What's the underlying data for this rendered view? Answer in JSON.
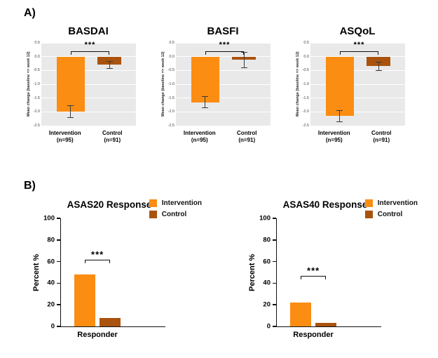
{
  "figure": {
    "panel_a_label": "A)",
    "panel_b_label": "B)"
  },
  "colors": {
    "intervention": "#FB8D12",
    "control": "#A9530E",
    "panel_background": "#E9E9E9"
  },
  "chart_data": [
    {
      "type": "bar",
      "panel": "A",
      "title": "BASDAI",
      "ylabel": "Mean change (baseline => week 12)",
      "categories": [
        "Intervention",
        "Control"
      ],
      "ns": [
        "(n=95)",
        "(n=91)"
      ],
      "values": [
        -2.0,
        -0.3
      ],
      "errors": [
        0.22,
        0.12
      ],
      "ylim": [
        -2.5,
        0.5
      ],
      "yticks": [
        0.5,
        0,
        -0.5,
        -1,
        -1.5,
        -2,
        -2.5
      ],
      "tick_decimals": 1,
      "grid": true,
      "significance": "***",
      "sig_y": 0.2,
      "bar_centers_pct": [
        31,
        72
      ],
      "bar_width_pct": [
        30,
        25
      ],
      "colors": [
        "#FB8D12",
        "#A9530E"
      ]
    },
    {
      "type": "bar",
      "panel": "A",
      "title": "BASFI",
      "ylabel": "Mean change (baseline => week 12)",
      "categories": [
        "Intervention",
        "Control"
      ],
      "ns": [
        "(n=95)",
        "(n=91)"
      ],
      "values": [
        -1.65,
        -0.12
      ],
      "errors": [
        0.2,
        0.28
      ],
      "ylim": [
        -2.5,
        0.5
      ],
      "yticks": [
        0.5,
        0,
        -0.5,
        -1,
        -1.5,
        -2,
        -2.5
      ],
      "tick_decimals": 1,
      "grid": true,
      "significance": "***",
      "sig_y": 0.2,
      "bar_centers_pct": [
        31,
        72
      ],
      "bar_width_pct": [
        30,
        25
      ],
      "colors": [
        "#FB8D12",
        "#A9530E"
      ]
    },
    {
      "type": "bar",
      "panel": "A",
      "title": "ASQoL",
      "ylabel": "Mean change (baseline => week 12)",
      "categories": [
        "Intervention",
        "Control"
      ],
      "ns": [
        "(n=95)",
        "(n=91)"
      ],
      "values": [
        -2.15,
        -0.35
      ],
      "errors": [
        0.2,
        0.15
      ],
      "ylim": [
        -2.5,
        0.5
      ],
      "yticks": [
        0.5,
        0,
        -0.5,
        -1,
        -1.5,
        -2,
        -2.5
      ],
      "tick_decimals": 1,
      "grid": true,
      "significance": "***",
      "sig_y": 0.2,
      "bar_centers_pct": [
        31,
        72
      ],
      "bar_width_pct": [
        30,
        25
      ],
      "colors": [
        "#FB8D12",
        "#A9530E"
      ]
    },
    {
      "type": "bar",
      "panel": "B",
      "title": "ASAS20 Response",
      "ylabel": "Percent %",
      "xlabel": "Responder",
      "categories": [
        "Intervention",
        "Control"
      ],
      "legend": [
        "Intervention",
        "Control"
      ],
      "values": [
        48,
        8
      ],
      "ylim": [
        0,
        100
      ],
      "yticks": [
        0,
        20,
        40,
        60,
        80,
        100
      ],
      "tick_decimals": 0,
      "grid": false,
      "tickmarks": true,
      "significance": "***",
      "sig_y": 62,
      "bar_centers_pct": [
        23,
        47
      ],
      "bar_width_pct": [
        20,
        20
      ],
      "colors": [
        "#FB8D12",
        "#A9530E"
      ]
    },
    {
      "type": "bar",
      "panel": "B",
      "title": "ASAS40 Response",
      "ylabel": "Percent %",
      "xlabel": "Responder",
      "categories": [
        "Intervention",
        "Control"
      ],
      "legend": [
        "Intervention",
        "Control"
      ],
      "values": [
        22,
        3
      ],
      "ylim": [
        0,
        100
      ],
      "yticks": [
        0,
        20,
        40,
        60,
        80,
        100
      ],
      "tick_decimals": 0,
      "grid": false,
      "tickmarks": true,
      "significance": "***",
      "sig_y": 47,
      "bar_centers_pct": [
        23,
        47
      ],
      "bar_width_pct": [
        20,
        20
      ],
      "colors": [
        "#FB8D12",
        "#A9530E"
      ]
    }
  ]
}
